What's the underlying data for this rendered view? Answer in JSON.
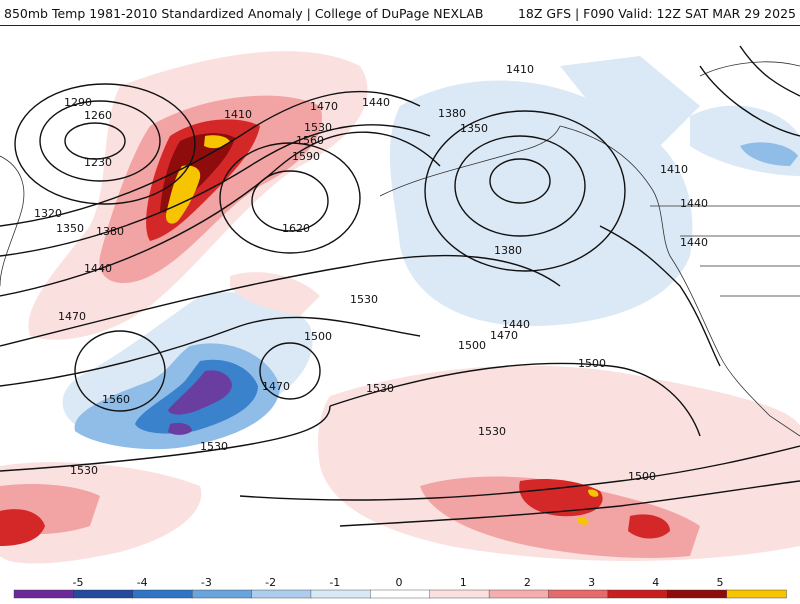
{
  "header": {
    "title_left": "850mb Temp 1981-2010 Standardized Anomaly | College of DuPage NEXLAB",
    "title_right": "18Z GFS | F090 Valid: 12Z SAT MAR 29 2025"
  },
  "contours": {
    "labels": [
      "1290",
      "1260",
      "1230",
      "1320",
      "1350",
      "1380",
      "1440",
      "1470",
      "1410",
      "1470",
      "1530",
      "1560",
      "1590",
      "1620",
      "1440",
      "1410",
      "1380",
      "1350",
      "1380",
      "1440",
      "1470",
      "1500",
      "1530",
      "1560",
      "1500",
      "1470",
      "1530",
      "1530",
      "1530",
      "1500",
      "1500",
      "1410",
      "1440",
      "1440",
      "1530"
    ]
  },
  "legend": {
    "ticks": [
      "-5",
      "-4",
      "-3",
      "-2",
      "-1",
      "0",
      "1",
      "2",
      "3",
      "4",
      "5"
    ],
    "colors": [
      "#6a2a9a",
      "#234a9c",
      "#2f74c6",
      "#6aa4dd",
      "#aecdee",
      "#d8e8f6",
      "#ffffff",
      "#fbe0e0",
      "#f4aeae",
      "#e66a6a",
      "#c81e1e",
      "#8e0c0c",
      "#f6c400"
    ]
  }
}
